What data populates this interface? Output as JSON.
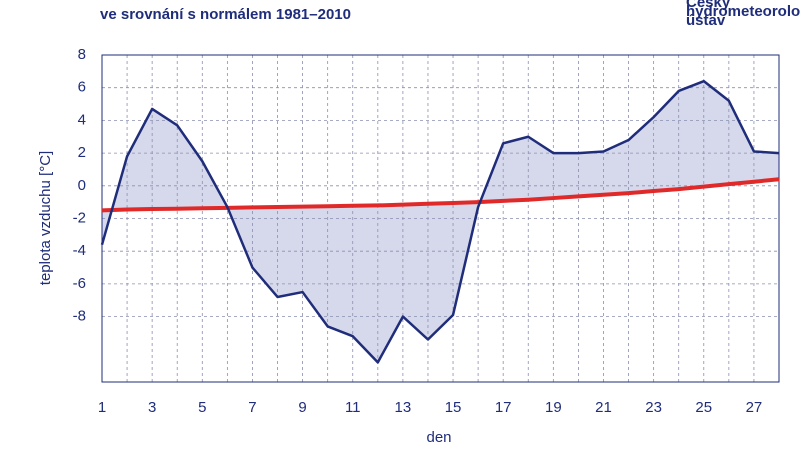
{
  "chart_data": {
    "type": "line",
    "title": "ve srovnání s normálem 1981–2010",
    "source": [
      "Český",
      "hydrometeorologický",
      "ústav"
    ],
    "xlabel": "den",
    "ylabel": "teplota vzduchu [°C]",
    "x": [
      1,
      2,
      3,
      4,
      5,
      6,
      7,
      8,
      9,
      10,
      11,
      12,
      13,
      14,
      15,
      16,
      17,
      18,
      19,
      20,
      21,
      22,
      23,
      24,
      25,
      26,
      27,
      28
    ],
    "series": [
      {
        "color": "#1f2d7a",
        "values": [
          -3.6,
          1.8,
          4.7,
          3.7,
          1.5,
          -1.3,
          -5.0,
          -6.8,
          -6.5,
          -8.6,
          -9.2,
          -10.8,
          -8.0,
          -9.4,
          -7.9,
          -1.3,
          2.6,
          3.0,
          2.0,
          2.0,
          2.1,
          2.8,
          4.2,
          5.8,
          6.4,
          5.2,
          2.1,
          2.0
        ]
      },
      {
        "color": "#e02a2a",
        "values": [
          -1.5,
          -1.45,
          -1.42,
          -1.4,
          -1.37,
          -1.35,
          -1.32,
          -1.3,
          -1.27,
          -1.25,
          -1.22,
          -1.2,
          -1.15,
          -1.1,
          -1.05,
          -1.0,
          -0.92,
          -0.85,
          -0.75,
          -0.65,
          -0.55,
          -0.45,
          -0.32,
          -0.2,
          -0.05,
          0.1,
          0.25,
          0.4
        ]
      }
    ],
    "fill_between": "#d6d9ec",
    "xlim": [
      1,
      28
    ],
    "xticks": [
      1,
      3,
      5,
      7,
      9,
      11,
      13,
      15,
      17,
      19,
      21,
      23,
      25,
      27
    ],
    "ylim": [
      -12,
      8
    ],
    "yticks": [
      -8,
      -6,
      -4,
      -2,
      0,
      2,
      4,
      6,
      8
    ],
    "grid": true
  }
}
